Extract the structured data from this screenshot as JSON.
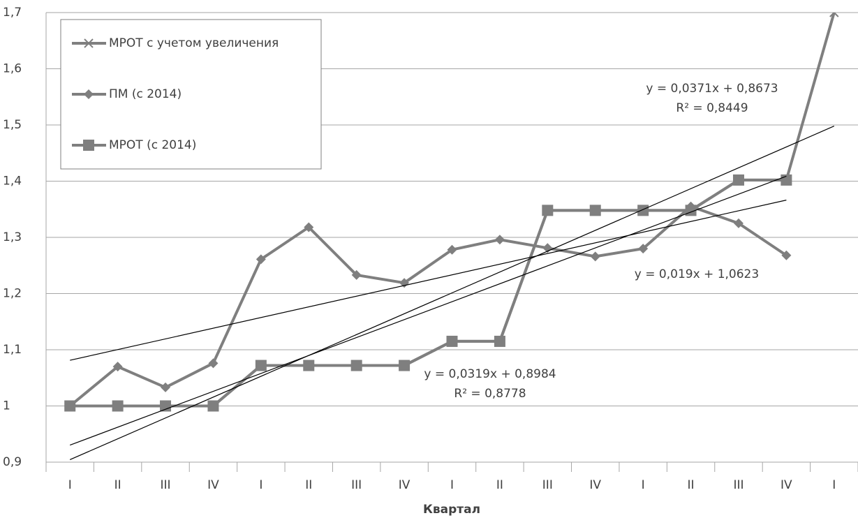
{
  "chart_data": {
    "type": "line",
    "x_label": "Квартал",
    "categories": [
      "I",
      "II",
      "III",
      "IV",
      "I",
      "II",
      "III",
      "IV",
      "I",
      "II",
      "III",
      "IV",
      "I",
      "II",
      "III",
      "IV",
      "I"
    ],
    "ylim": [
      0.9,
      1.7
    ],
    "yticks": [
      {
        "value": 0.9,
        "label": "0,9"
      },
      1,
      {
        "value": 1.1,
        "label": "1,1"
      },
      {
        "value": 1.2,
        "label": "1,2"
      },
      {
        "value": 1.3,
        "label": "1,3"
      },
      {
        "value": 1.4,
        "label": "1,4"
      },
      {
        "value": 1.5,
        "label": "1,5"
      },
      {
        "value": 1.6,
        "label": "1,6"
      },
      {
        "value": 1.7,
        "label": "1,7"
      }
    ],
    "grid": true,
    "legend": "top-left",
    "series": [
      {
        "name": "МРОТ с учетом увеличения",
        "color": "#7f7f7f",
        "marker": "x",
        "values": [
          1,
          1,
          1,
          1,
          1.072,
          1.072,
          1.072,
          1.072,
          1.115,
          1.115,
          1.348,
          1.348,
          1.348,
          1.348,
          1.402,
          1.402,
          1.7
        ],
        "trendline": {
          "slope": 0.0371,
          "intercept": 0.8673,
          "equation": "y = 0,0371x + 0,8673",
          "r2": "R² = 0,8449"
        }
      },
      {
        "name": "ПМ (с 2014)",
        "color": "#7f7f7f",
        "marker": "diamond",
        "values": [
          1,
          1.07,
          1.033,
          1.076,
          1.261,
          1.318,
          1.233,
          1.219,
          1.278,
          1.296,
          1.281,
          1.266,
          1.28,
          1.355,
          1.325,
          1.268,
          null
        ],
        "trendline": {
          "slope": 0.019,
          "intercept": 1.0623,
          "equation": "y = 0,019x + 1,0623"
        }
      },
      {
        "name": "МРОТ (с 2014)",
        "color": "#7f7f7f",
        "marker": "square",
        "values": [
          1,
          1,
          1,
          1,
          1.072,
          1.072,
          1.072,
          1.072,
          1.115,
          1.115,
          1.348,
          1.348,
          1.348,
          1.348,
          1.402,
          1.402,
          null
        ],
        "trendline": {
          "slope": 0.0319,
          "intercept": 0.8984,
          "equation": "y = 0,0319x + 0,8984",
          "r2": "R² = 0,8778"
        }
      }
    ]
  }
}
